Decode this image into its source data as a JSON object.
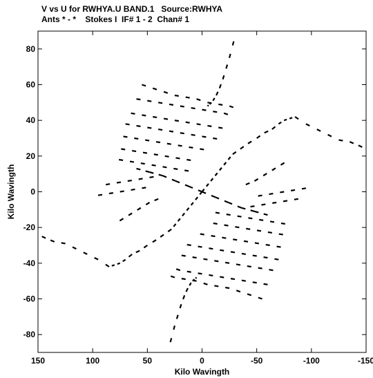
{
  "header": {
    "title_line1": "V vs U for RWHYA.U BAND.1   Source:RWHYA",
    "title_line2": "Ants * - *    Stokes I  IF# 1 - 2  Chan# 1"
  },
  "chart_data": {
    "type": "scatter",
    "xlabel": "Kilo Wavingth",
    "ylabel": "Kilo Wavingth",
    "xlim": [
      150,
      -150
    ],
    "ylim": [
      -90,
      90
    ],
    "xticks": [
      150,
      100,
      50,
      0,
      -50,
      -100,
      -150
    ],
    "yticks": [
      -80,
      -60,
      -40,
      -20,
      0,
      20,
      40,
      60,
      80
    ],
    "grid": false,
    "legend": "none",
    "series": [
      {
        "description": "UV coverage tracks (conjugate-symmetric dashed arcs)",
        "tracks": [
          {
            "u": [
              -5,
              -7,
              -10,
              -13,
              -16,
              -19,
              -22,
              -25,
              -28,
              -31
            ],
            "v": [
              48,
              49,
              51,
              54,
              58,
              63,
              69,
              75,
              82,
              89
            ]
          },
          {
            "u": [
              -28,
              -35,
              -42,
              -50,
              -57,
              -64,
              -70,
              -75,
              -80,
              -85
            ],
            "v": [
              21,
              24,
              27,
              30,
              33,
              35,
              38,
              40,
              41,
              42
            ]
          },
          {
            "u": [
              -85,
              -95,
              -105,
              -115,
              -125,
              -135,
              -143,
              -150
            ],
            "v": [
              42,
              38,
              35,
              32,
              29,
              28,
              26,
              24
            ]
          },
          {
            "u": [
              -40,
              -48,
              -56,
              -64,
              -72,
              -80
            ],
            "v": [
              4,
              6,
              9,
              12,
              15,
              18
            ]
          },
          {
            "u": [
              0,
              -4,
              -8,
              -12,
              -16,
              -20,
              -24,
              -28
            ],
            "v": [
              0,
              3,
              6,
              9,
              12,
              15,
              18,
              21
            ]
          },
          {
            "u": [
              55,
              45,
              35,
              25,
              15,
              5,
              -5,
              -15,
              -25,
              -35
            ],
            "v": [
              60,
              58,
              56,
              54,
              53,
              52,
              50,
              49,
              48,
              46
            ]
          },
          {
            "u": [
              60,
              50,
              40,
              30,
              20,
              10,
              0,
              -10,
              -20,
              -30
            ],
            "v": [
              52,
              51,
              50,
              49,
              48,
              47,
              46,
              45,
              44,
              42
            ]
          },
          {
            "u": [
              65,
              55,
              45,
              35,
              25,
              15,
              5,
              -5,
              -15,
              -25
            ],
            "v": [
              44,
              43,
              42,
              41,
              40,
              39,
              38,
              37,
              36,
              35
            ]
          },
          {
            "u": [
              70,
              60,
              50,
              40,
              30,
              20,
              10,
              0,
              -10,
              -20
            ],
            "v": [
              38,
              37,
              36,
              35,
              34,
              33,
              32,
              31,
              30,
              29
            ]
          },
          {
            "u": [
              72,
              62,
              52,
              42,
              32,
              22,
              12,
              2,
              -8
            ],
            "v": [
              31,
              30,
              29,
              28,
              27,
              26,
              25,
              24,
              23
            ]
          },
          {
            "u": [
              74,
              64,
              54,
              44,
              34,
              24,
              14,
              4
            ],
            "v": [
              24,
              23,
              22,
              21,
              20,
              19,
              18,
              17
            ]
          },
          {
            "u": [
              76,
              66,
              56,
              46,
              36,
              26,
              16,
              6
            ],
            "v": [
              18,
              17,
              16,
              15,
              14,
              13,
              12,
              11
            ]
          },
          {
            "u": [
              60,
              48,
              36,
              24,
              12,
              0,
              -12,
              -24,
              -36,
              -48,
              -60
            ],
            "v": [
              13,
              11,
              9,
              6,
              3,
              0,
              -3,
              -6,
              -9,
              -11,
              -13
            ]
          },
          {
            "u": [
              88,
              78,
              68,
              58,
              48,
              38
            ],
            "v": [
              4,
              5,
              6,
              7,
              8,
              9
            ]
          },
          {
            "u": [
              95,
              85,
              75,
              65,
              55,
              45
            ],
            "v": [
              -2,
              -1,
              0,
              1,
              2,
              3
            ]
          }
        ]
      }
    ]
  }
}
